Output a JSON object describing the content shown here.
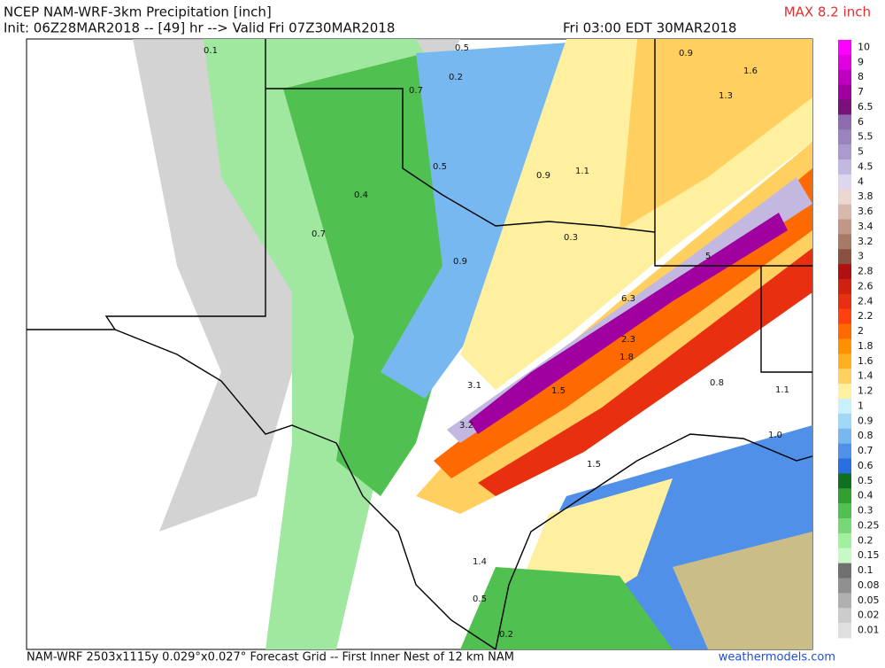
{
  "header": {
    "title": "NCEP NAM-WRF-3km Precipitation [inch]",
    "init": "Init: 06Z28MAR2018 -- [49] hr --> Valid Fri 07Z30MAR2018",
    "valid": "Fri 03:00 EDT 30MAR2018",
    "max": "MAX 8.2 inch"
  },
  "legend": {
    "labels": [
      "10",
      "9",
      "8",
      "7",
      "6.5",
      "6",
      "5.5",
      "5",
      "4.5",
      "4",
      "3.8",
      "3.6",
      "3.4",
      "3.2",
      "3",
      "2.8",
      "2.6",
      "2.4",
      "2.2",
      "2",
      "1.8",
      "1.6",
      "1.4",
      "1.2",
      "1",
      "0.9",
      "0.8",
      "0.7",
      "0.6",
      "0.5",
      "0.4",
      "0.3",
      "0.25",
      "0.2",
      "0.15",
      "0.1",
      "0.08",
      "0.05",
      "0.02",
      "0.01"
    ],
    "colors": [
      "#ff00ff",
      "#e000e0",
      "#c000c0",
      "#a000a0",
      "#7a107a",
      "#8d6bb0",
      "#9a84c0",
      "#a99bd0",
      "#c2b8e0",
      "#ddd6ee",
      "#ead8d0",
      "#d7b8ac",
      "#c09888",
      "#a87868",
      "#8a5040",
      "#b01010",
      "#d02010",
      "#e83010",
      "#ff4010",
      "#ff6a00",
      "#ff9000",
      "#ffb020",
      "#ffd060",
      "#fff0a0",
      "#c8f0ff",
      "#a0d8f8",
      "#78b8f0",
      "#5090e8",
      "#2870e0",
      "#107020",
      "#30a030",
      "#50c050",
      "#78d878",
      "#a0f0a0",
      "#c8f8c8",
      "#707070",
      "#909090",
      "#b0b0b0",
      "#cccccc",
      "#e0e0e0"
    ]
  },
  "map_labels": [
    "0.1",
    "0.5",
    "0.9",
    "1.6",
    "0.2",
    "1.3",
    "0.7",
    "0.5",
    "0.9",
    "1.1",
    "0.4",
    "0.7",
    "0.9",
    "0.3",
    "5",
    "6.3",
    "2.3",
    "1.8",
    "3.1",
    "1.5",
    "3.2",
    "1.5",
    "1.0",
    "1.4",
    "0.5",
    "0.2",
    "1.1",
    "0.8"
  ],
  "footer": {
    "grid": "NAM-WRF 2503x1115y 0.029°x0.027° Forecast Grid -- First Inner Nest of 12 km NAM",
    "source": "weathermodels.com"
  }
}
